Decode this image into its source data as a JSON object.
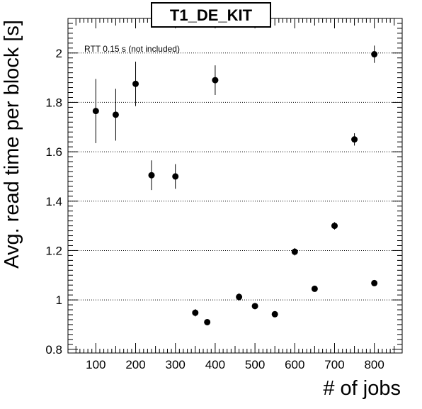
{
  "chart_data": {
    "type": "scatter",
    "title": "T1_DE_KIT",
    "xlabel": "# of jobs",
    "ylabel": "Avg. read time per block [s]",
    "annotation": "RTT 0.15 s (not included)",
    "xlim": [
      30,
      870
    ],
    "ylim": [
      0.785,
      2.14
    ],
    "x_ticks": [
      100,
      200,
      300,
      400,
      500,
      600,
      700,
      800
    ],
    "x_tick_labels": [
      "100",
      "200",
      "300",
      "400",
      "500",
      "600",
      "700",
      "800"
    ],
    "y_ticks": [
      0.8,
      1.0,
      1.2,
      1.4,
      1.6,
      1.8,
      2.0
    ],
    "y_tick_labels": [
      "0.8",
      "1",
      "1.2",
      "1.4",
      "1.6",
      "1.8",
      "2"
    ],
    "y_gridlines": [
      1.0,
      1.2,
      1.4,
      1.6,
      1.8,
      2.0
    ],
    "grid": "horizontal dotted",
    "series": [
      {
        "points": [
          {
            "x": 100,
            "y": 1.765,
            "err": 0.13
          },
          {
            "x": 150,
            "y": 1.75,
            "err": 0.105
          },
          {
            "x": 200,
            "y": 1.875,
            "err": 0.09
          },
          {
            "x": 240,
            "y": 1.505,
            "err": 0.06
          },
          {
            "x": 300,
            "y": 1.5,
            "err": 0.05
          },
          {
            "x": 350,
            "y": 0.948,
            "err": 0.015
          },
          {
            "x": 380,
            "y": 0.91,
            "err": 0.012
          },
          {
            "x": 400,
            "y": 1.89,
            "err": 0.06
          },
          {
            "x": 460,
            "y": 1.012,
            "err": 0.015
          },
          {
            "x": 500,
            "y": 0.975,
            "err": 0.01
          },
          {
            "x": 550,
            "y": 0.942,
            "err": 0.01
          },
          {
            "x": 600,
            "y": 1.195,
            "err": 0.015
          },
          {
            "x": 650,
            "y": 1.045,
            "err": 0.01
          },
          {
            "x": 700,
            "y": 1.3,
            "err": 0.015
          },
          {
            "x": 750,
            "y": 1.65,
            "err": 0.025
          },
          {
            "x": 800,
            "y": 1.068,
            "err": 0.01
          },
          {
            "x": 800,
            "y": 1.995,
            "err": 0.035
          }
        ]
      }
    ],
    "colors": {
      "marker": "#000000",
      "axis": "#000000",
      "grid": "#000000",
      "background": "#ffffff"
    }
  }
}
